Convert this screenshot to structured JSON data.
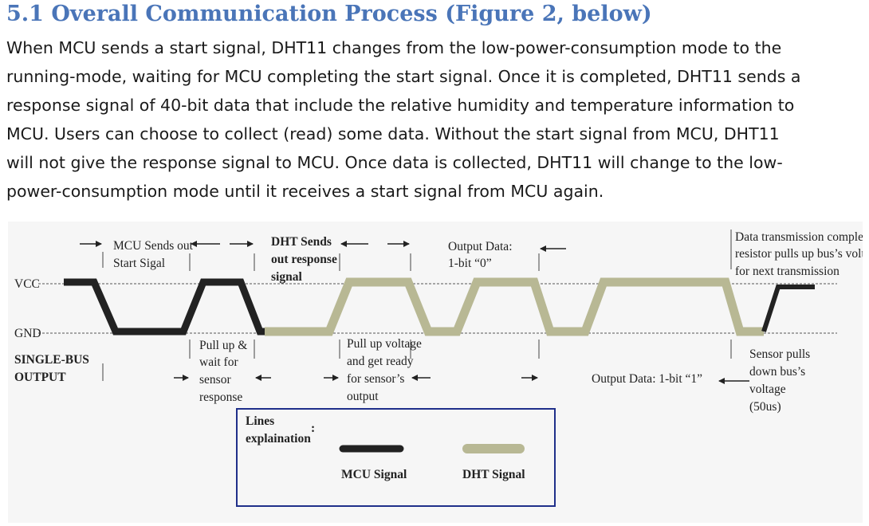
{
  "section": {
    "title": "5.1 Overall Communication Process (Figure 2, below)",
    "paragraph": [
      "When MCU sends a start signal, DHT11 changes from the low-power-consumption mode to the",
      "running-mode, waiting for MCU completing the start signal. Once it is completed, DHT11 sends a",
      "response signal of 40-bit data that include the relative humidity and temperature information to",
      "MCU. Users can choose to collect (read) some data. Without the start signal from MCU, DHT11",
      "will not give the response signal to MCU. Once data is collected, DHT11 will change to the low-",
      "power-consumption mode until it receives a start signal from MCU again."
    ]
  },
  "figure": {
    "colors": {
      "mcu": "#222222",
      "dht": "#b8b894",
      "legend_border": "#1f2f8a"
    },
    "levels": {
      "vcc": "VCC",
      "gnd": "GND"
    },
    "side_label": [
      "SINGLE-BUS",
      "OUTPUT"
    ],
    "top_labels": {
      "mcu_start": [
        "MCU Sends out",
        "Start Sigal"
      ],
      "dht_sends": [
        "DHT Sends",
        "out response",
        "signal"
      ],
      "output_0": [
        "Output Data:",
        "1-bit “0”"
      ],
      "completed": [
        "Data transmission completed;",
        "resistor pulls up bus’s voltage",
        "for next transmission"
      ]
    },
    "bottom_labels": {
      "pull_up_wait": [
        "Pull up &",
        "wait for",
        "sensor",
        "response"
      ],
      "pull_up_voltage": [
        "Pull up voltage",
        "and get ready",
        "for sensor’s",
        "output"
      ],
      "output_1": "Output Data: 1-bit “1”",
      "sensor_pulls": [
        "Sensor pulls",
        "down bus’s",
        "voltage",
        "(50us)"
      ]
    },
    "legend": {
      "title": [
        "Lines",
        "explaination"
      ],
      "colon": ":",
      "mcu": "MCU Signal",
      "dht": "DHT Signal"
    }
  }
}
